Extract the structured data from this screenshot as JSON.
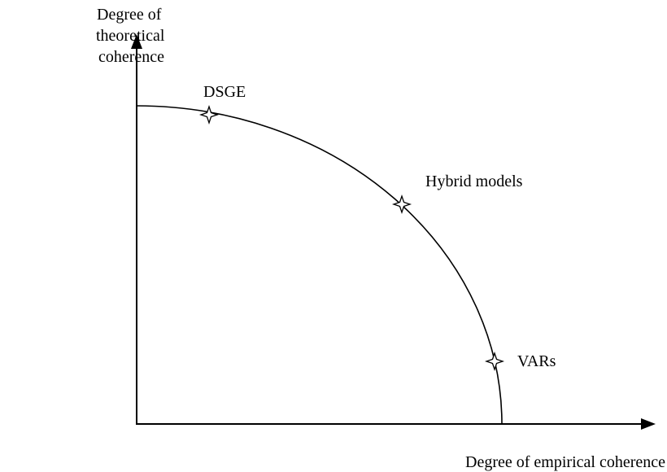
{
  "y_axis_label": [
    "Degree of",
    "theoretical",
    "coherence"
  ],
  "x_axis_label": "Degree of empirical coherence",
  "points": [
    {
      "label": "DSGE"
    },
    {
      "label": "Hybrid models"
    },
    {
      "label": "VARs"
    }
  ]
}
